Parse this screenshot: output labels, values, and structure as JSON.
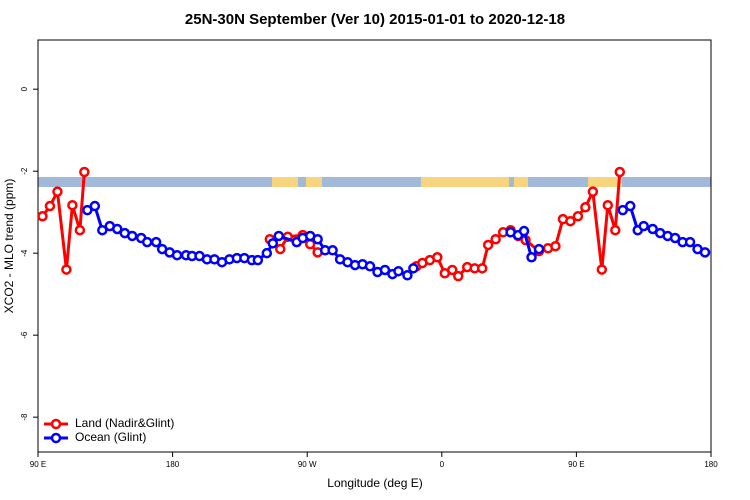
{
  "chart_data": {
    "type": "line",
    "title": "25N-30N September (Ver 10)   2015-01-01 to 2020-12-18",
    "x_label": "Longitude (deg E)",
    "y_label": "XCO2 - MLO trend (ppm)",
    "xlim": [
      90,
      540
    ],
    "xticks": [
      {
        "value": 90,
        "label": "90 E"
      },
      {
        "value": 180,
        "label": "180"
      },
      {
        "value": 270,
        "label": "90 W"
      },
      {
        "value": 360,
        "label": "0"
      },
      {
        "value": 450,
        "label": "90 E"
      },
      {
        "value": 540,
        "label": "180"
      }
    ],
    "ylim": [
      -8.85,
      1.2
    ],
    "yticks": [
      0,
      -2,
      -4,
      -6,
      -8
    ],
    "legend": "bottom-left",
    "series": [
      {
        "name": "Land (Nadir&Glint)",
        "color": "#ff0000",
        "x": [
          93,
          98,
          103,
          109,
          113,
          118,
          121,
          null,
          245,
          252,
          257,
          267,
          272,
          277,
          null,
          343,
          347,
          352,
          357,
          362,
          367,
          371,
          377,
          382,
          387,
          391,
          396,
          401,
          406,
          411,
          416,
          425,
          431,
          436,
          441,
          446,
          451,
          456,
          461,
          467,
          471,
          476,
          479
        ],
        "values": [
          -3.1,
          -2.85,
          -2.5,
          -4.4,
          -2.83,
          -3.44,
          -2.02,
          null,
          -3.66,
          -3.9,
          -3.6,
          -3.56,
          -3.78,
          -3.98,
          null,
          -4.32,
          -4.24,
          -4.17,
          -4.1,
          -4.49,
          -4.41,
          -4.56,
          -4.34,
          -4.37,
          -4.37,
          -3.8,
          -3.66,
          -3.49,
          -3.44,
          -3.58,
          -3.68,
          -3.95,
          -3.88,
          -3.83,
          -3.17,
          -3.22,
          -3.1,
          -2.88,
          -2.5,
          -4.4,
          -2.83,
          -3.44,
          -2.02
        ]
      },
      {
        "name": "Ocean (Glint)",
        "color": "#0000ff",
        "x": [
          123,
          128,
          133,
          138,
          143,
          148,
          153,
          159,
          163,
          169,
          173,
          178,
          183,
          189,
          193,
          198,
          203,
          208,
          213,
          218,
          223,
          228,
          233,
          237,
          243,
          247,
          251,
          263,
          267,
          272,
          277,
          282,
          287,
          292,
          297,
          302,
          307,
          312,
          317,
          322,
          327,
          331,
          337,
          341,
          null,
          406,
          411,
          415,
          420,
          425,
          null,
          481,
          486,
          491,
          495,
          501,
          506,
          511,
          516,
          521,
          526,
          531,
          536
        ],
        "values": [
          -2.95,
          -2.85,
          -3.44,
          -3.34,
          -3.41,
          -3.51,
          -3.58,
          -3.63,
          -3.73,
          -3.73,
          -3.9,
          -3.98,
          -4.05,
          -4.05,
          -4.07,
          -4.07,
          -4.15,
          -4.15,
          -4.22,
          -4.15,
          -4.12,
          -4.12,
          -4.17,
          -4.17,
          -4.0,
          -3.76,
          -3.58,
          -3.73,
          -3.63,
          -3.58,
          -3.66,
          -3.93,
          -3.93,
          -4.15,
          -4.22,
          -4.29,
          -4.27,
          -4.32,
          -4.46,
          -4.41,
          -4.51,
          -4.44,
          -4.54,
          -4.37,
          null,
          -3.49,
          -3.56,
          -3.46,
          -4.1,
          -3.9,
          null,
          -2.95,
          -2.85,
          -3.44,
          -3.34,
          -3.41,
          -3.51,
          -3.58,
          -3.63,
          -3.73,
          -3.73,
          -3.9,
          -3.98
        ]
      }
    ]
  }
}
